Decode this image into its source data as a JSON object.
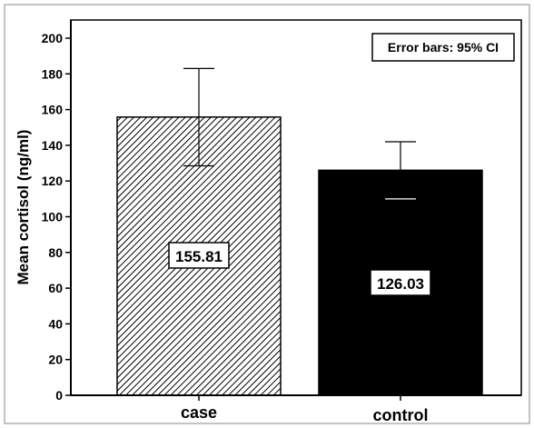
{
  "chart_data": {
    "type": "bar",
    "categories": [
      "case",
      "control"
    ],
    "values": [
      155.81,
      126.03
    ],
    "value_labels": [
      "155.81",
      "126.03"
    ],
    "error_bars": [
      {
        "low": 128.5,
        "high": 183
      },
      {
        "low": 110,
        "high": 142
      }
    ],
    "bar_fills": [
      "hatched",
      "solid"
    ],
    "bar_colors": [
      "#000000",
      "#000000"
    ],
    "ylabel": "Mean cortisol (ng/ml)",
    "xlabel": "",
    "ylim": [
      0,
      200
    ],
    "yticks": [
      "0",
      "20",
      "40",
      "60",
      "80",
      "100",
      "120",
      "140",
      "160",
      "180",
      "200"
    ],
    "legend_text": "Error bars: 95% CI",
    "legend_position": "top-right",
    "grid": false
  }
}
